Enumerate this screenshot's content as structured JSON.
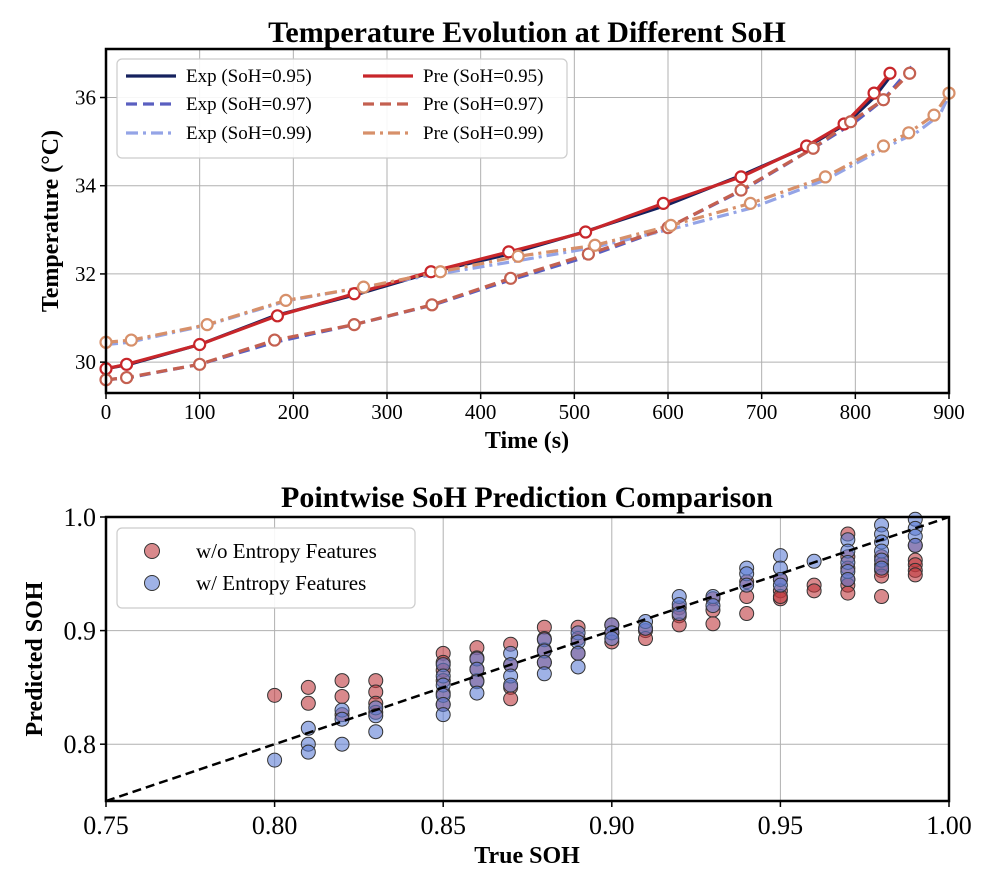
{
  "chart_data": [
    {
      "type": "line",
      "title": "Temperature Evolution at Different SoH",
      "xlabel": "Time (s)",
      "ylabel": "Temperature (°C)",
      "xlim": [
        0,
        900
      ],
      "ylim": [
        29.3,
        37.1
      ],
      "xticks": [
        0,
        100,
        200,
        300,
        400,
        500,
        600,
        700,
        800,
        900
      ],
      "yticks": [
        30,
        32,
        34,
        36
      ],
      "xtick_labels": [
        "0",
        "100",
        "200",
        "300",
        "400",
        "500",
        "600",
        "700",
        "800",
        "900"
      ],
      "ytick_labels": [
        "30",
        "32",
        "34",
        "36"
      ],
      "grid": true,
      "legend": "upper-left",
      "series": [
        {
          "name": "Exp (SoH=0.95)",
          "color": "#15215e",
          "style": "solid",
          "x": [
            0,
            25,
            100,
            180,
            270,
            350,
            430,
            510,
            597,
            680,
            750,
            790,
            820,
            840
          ],
          "y": [
            29.85,
            29.95,
            30.4,
            31.05,
            31.55,
            32.05,
            32.45,
            32.95,
            33.55,
            34.25,
            34.9,
            35.4,
            36.0,
            36.55
          ]
        },
        {
          "name": "Exp (SoH=0.97)",
          "color": "#5a5fc0",
          "style": "dashed",
          "x": [
            0,
            25,
            100,
            180,
            265,
            350,
            430,
            515,
            600,
            680,
            755,
            800,
            830,
            860
          ],
          "y": [
            29.6,
            29.65,
            29.95,
            30.45,
            30.85,
            31.3,
            31.85,
            32.4,
            33.05,
            33.9,
            34.85,
            35.45,
            35.95,
            36.7
          ]
        },
        {
          "name": "Exp (SoH=0.99)",
          "color": "#94a4e6",
          "style": "dashdot",
          "x": [
            0,
            25,
            110,
            195,
            275,
            355,
            440,
            520,
            610,
            690,
            770,
            835,
            865,
            890,
            900
          ],
          "y": [
            30.4,
            30.45,
            30.85,
            31.4,
            31.7,
            32.0,
            32.3,
            32.6,
            33.05,
            33.5,
            34.15,
            34.9,
            35.2,
            35.6,
            36.05
          ]
        },
        {
          "name": "Pre (SoH=0.95)",
          "color": "#c8262a",
          "style": "solid",
          "x": [
            0,
            22,
            100,
            183,
            265,
            347,
            430,
            512,
            595,
            678,
            748,
            788,
            820,
            837
          ],
          "y": [
            29.85,
            29.95,
            30.4,
            31.05,
            31.55,
            32.05,
            32.5,
            32.95,
            33.6,
            34.2,
            34.9,
            35.4,
            36.1,
            36.55
          ]
        },
        {
          "name": "Pre (SoH=0.97)",
          "color": "#c46050",
          "style": "dashed",
          "x": [
            0,
            22,
            100,
            180,
            265,
            348,
            432,
            515,
            600,
            678,
            755,
            795,
            830,
            858
          ],
          "y": [
            29.6,
            29.65,
            29.95,
            30.5,
            30.85,
            31.3,
            31.9,
            32.45,
            33.05,
            33.9,
            34.85,
            35.45,
            35.95,
            36.55
          ]
        },
        {
          "name": "Pre (SoH=0.99)",
          "color": "#d7906a",
          "style": "dashdot",
          "x": [
            0,
            27,
            108,
            192,
            275,
            357,
            440,
            522,
            603,
            688,
            768,
            830,
            857,
            884,
            900
          ],
          "y": [
            30.45,
            30.5,
            30.85,
            31.4,
            31.7,
            32.05,
            32.4,
            32.65,
            33.1,
            33.6,
            34.2,
            34.9,
            35.2,
            35.6,
            36.1
          ]
        }
      ]
    },
    {
      "type": "scatter",
      "title": "Pointwise SoH Prediction Comparison",
      "xlabel": "True SOH",
      "ylabel": "Predicted SOH",
      "xlim": [
        0.75,
        1.0
      ],
      "ylim": [
        0.75,
        1.0
      ],
      "xticks": [
        0.75,
        0.8,
        0.85,
        0.9,
        0.95,
        1.0
      ],
      "yticks": [
        0.8,
        0.9,
        1.0
      ],
      "xtick_labels": [
        "0.75",
        "0.80",
        "0.85",
        "0.90",
        "0.95",
        "1.00"
      ],
      "ytick_labels": [
        "0.8",
        "0.9",
        "1.0"
      ],
      "grid": true,
      "legend": "upper-left",
      "reference_line": {
        "x": [
          0.75,
          1.0
        ],
        "y": [
          0.75,
          1.0
        ],
        "style": "dashed",
        "color": "#000000"
      },
      "series": [
        {
          "name": "w/o Entropy Features",
          "color": "#c03a3f",
          "x": [
            0.8,
            0.81,
            0.81,
            0.82,
            0.82,
            0.82,
            0.83,
            0.83,
            0.83,
            0.83,
            0.85,
            0.85,
            0.85,
            0.85,
            0.85,
            0.85,
            0.86,
            0.86,
            0.86,
            0.86,
            0.87,
            0.87,
            0.87,
            0.87,
            0.88,
            0.88,
            0.88,
            0.88,
            0.89,
            0.89,
            0.89,
            0.9,
            0.9,
            0.9,
            0.91,
            0.91,
            0.92,
            0.92,
            0.92,
            0.93,
            0.93,
            0.93,
            0.94,
            0.94,
            0.94,
            0.95,
            0.95,
            0.95,
            0.95,
            0.96,
            0.96,
            0.97,
            0.97,
            0.97,
            0.97,
            0.97,
            0.97,
            0.98,
            0.98,
            0.98,
            0.98,
            0.98,
            0.99,
            0.99,
            0.99,
            0.99,
            0.99
          ],
          "y": [
            0.843,
            0.85,
            0.836,
            0.856,
            0.842,
            0.826,
            0.856,
            0.846,
            0.836,
            0.828,
            0.88,
            0.872,
            0.865,
            0.856,
            0.845,
            0.835,
            0.885,
            0.876,
            0.866,
            0.856,
            0.888,
            0.87,
            0.85,
            0.84,
            0.903,
            0.893,
            0.883,
            0.872,
            0.903,
            0.893,
            0.88,
            0.905,
            0.898,
            0.89,
            0.9,
            0.893,
            0.92,
            0.913,
            0.905,
            0.928,
            0.918,
            0.906,
            0.943,
            0.93,
            0.915,
            0.945,
            0.935,
            0.928,
            0.93,
            0.94,
            0.935,
            0.985,
            0.965,
            0.955,
            0.945,
            0.94,
            0.933,
            0.965,
            0.958,
            0.953,
            0.948,
            0.93,
            0.975,
            0.962,
            0.958,
            0.953,
            0.949
          ]
        },
        {
          "name": "w/ Entropy Features",
          "color": "#5f7fd6",
          "x": [
            0.8,
            0.81,
            0.81,
            0.81,
            0.82,
            0.82,
            0.82,
            0.83,
            0.83,
            0.83,
            0.85,
            0.85,
            0.85,
            0.85,
            0.85,
            0.85,
            0.86,
            0.86,
            0.86,
            0.86,
            0.87,
            0.87,
            0.87,
            0.87,
            0.88,
            0.88,
            0.88,
            0.88,
            0.89,
            0.89,
            0.89,
            0.89,
            0.9,
            0.9,
            0.9,
            0.91,
            0.91,
            0.92,
            0.92,
            0.92,
            0.93,
            0.93,
            0.94,
            0.94,
            0.94,
            0.95,
            0.95,
            0.95,
            0.95,
            0.96,
            0.97,
            0.97,
            0.97,
            0.97,
            0.97,
            0.98,
            0.98,
            0.98,
            0.98,
            0.98,
            0.98,
            0.99,
            0.99,
            0.99,
            0.99
          ],
          "y": [
            0.786,
            0.814,
            0.8,
            0.793,
            0.83,
            0.822,
            0.8,
            0.832,
            0.825,
            0.811,
            0.87,
            0.86,
            0.852,
            0.843,
            0.835,
            0.826,
            0.875,
            0.866,
            0.855,
            0.845,
            0.88,
            0.87,
            0.86,
            0.852,
            0.892,
            0.882,
            0.872,
            0.862,
            0.898,
            0.89,
            0.88,
            0.868,
            0.905,
            0.898,
            0.893,
            0.908,
            0.902,
            0.93,
            0.923,
            0.915,
            0.93,
            0.922,
            0.955,
            0.95,
            0.94,
            0.966,
            0.955,
            0.945,
            0.94,
            0.961,
            0.98,
            0.97,
            0.96,
            0.952,
            0.945,
            0.993,
            0.985,
            0.978,
            0.97,
            0.962,
            0.955,
            0.998,
            0.99,
            0.983,
            0.975
          ]
        }
      ]
    }
  ]
}
